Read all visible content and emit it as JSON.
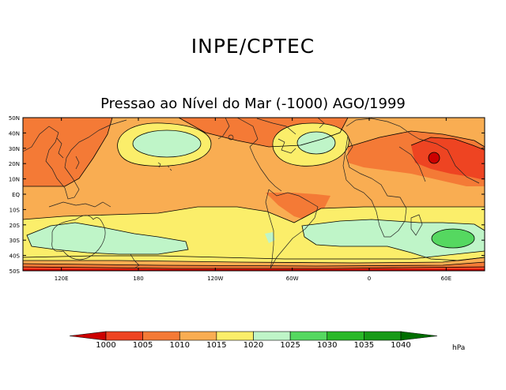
{
  "header": {
    "title": "INPE/CPTEC",
    "subtitle": "Pressao ao Nível do Mar (-1000) AGO/1999"
  },
  "map": {
    "lat_labels": [
      "50N",
      "40N",
      "30N",
      "20N",
      "10N",
      "EQ",
      "10S",
      "20S",
      "30S",
      "40S",
      "50S"
    ],
    "lon_labels": [
      "120E",
      "180",
      "120W",
      "60W",
      "0",
      "60E"
    ]
  },
  "legend": {
    "unit": "hPa",
    "values": [
      "1000",
      "1005",
      "1010",
      "1015",
      "1020",
      "1025",
      "1030",
      "1035",
      "1040"
    ],
    "colors": [
      "#cc0000",
      "#ee4422",
      "#f47a36",
      "#f9ad52",
      "#fbee6a",
      "#bff5c8",
      "#55d860",
      "#2ab828",
      "#179a17",
      "#006e00"
    ]
  }
}
